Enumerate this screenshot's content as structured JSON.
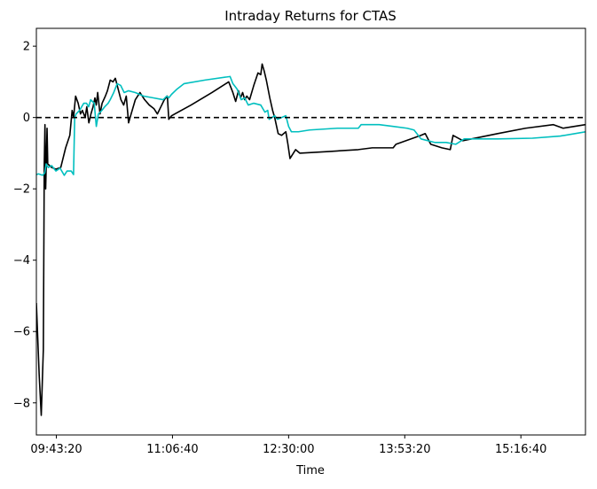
{
  "chart_data": {
    "type": "line",
    "title": "Intraday Returns for CTAS",
    "xlabel": "Time",
    "ylabel": "",
    "xlim": [
      "09:29:00",
      "16:03:00"
    ],
    "ylim": [
      -8.9,
      2.5
    ],
    "x_ticks": [
      "09:43:20",
      "11:06:40",
      "12:30:00",
      "13:53:20",
      "15:16:40"
    ],
    "y_ticks": [
      2,
      0,
      -2,
      -4,
      -6,
      -8
    ],
    "y_tick_labels": [
      "2",
      "0",
      "−2",
      "−4",
      "−6",
      "−8"
    ],
    "grid": false,
    "legend": "none",
    "reference_line": {
      "y": 0,
      "style": "dashed",
      "color": "#000000"
    },
    "series": [
      {
        "color": "#000000",
        "points": [
          [
            "09:29:00",
            -5.2
          ],
          [
            "09:31:00",
            -7.2
          ],
          [
            "09:32:30",
            -8.35
          ],
          [
            "09:34:00",
            -6.5
          ],
          [
            "09:34:40",
            -1.3
          ],
          [
            "09:35:10",
            -0.2
          ],
          [
            "09:35:40",
            -2.0
          ],
          [
            "09:36:10",
            -1.2
          ],
          [
            "09:36:40",
            -0.3
          ],
          [
            "09:37:10",
            -1.3
          ],
          [
            "09:38:30",
            -1.35
          ],
          [
            "09:40:00",
            -1.4
          ],
          [
            "09:43:00",
            -1.45
          ],
          [
            "09:46:30",
            -1.4
          ],
          [
            "09:50:00",
            -0.85
          ],
          [
            "09:53:00",
            -0.5
          ],
          [
            "09:54:40",
            0.2
          ],
          [
            "09:55:40",
            0.0
          ],
          [
            "09:57:10",
            0.6
          ],
          [
            "09:59:00",
            0.4
          ],
          [
            "10:00:40",
            0.1
          ],
          [
            "10:02:00",
            0.2
          ],
          [
            "10:04:00",
            0.0
          ],
          [
            "10:05:10",
            0.3
          ],
          [
            "10:06:40",
            -0.15
          ],
          [
            "10:08:10",
            0.1
          ],
          [
            "10:09:40",
            0.3
          ],
          [
            "10:11:00",
            0.55
          ],
          [
            "10:12:00",
            0.35
          ],
          [
            "10:13:00",
            0.7
          ],
          [
            "10:14:40",
            0.1
          ],
          [
            "10:16:10",
            0.4
          ],
          [
            "10:18:30",
            0.6
          ],
          [
            "10:20:00",
            0.75
          ],
          [
            "10:22:00",
            1.05
          ],
          [
            "10:24:00",
            1.0
          ],
          [
            "10:25:40",
            1.1
          ],
          [
            "10:27:40",
            0.8
          ],
          [
            "10:29:40",
            0.5
          ],
          [
            "10:31:40",
            0.35
          ],
          [
            "10:33:30",
            0.6
          ],
          [
            "10:35:10",
            -0.15
          ],
          [
            "10:37:00",
            0.1
          ],
          [
            "10:40:00",
            0.5
          ],
          [
            "10:43:20",
            0.7
          ],
          [
            "10:46:40",
            0.5
          ],
          [
            "10:50:00",
            0.35
          ],
          [
            "10:53:20",
            0.25
          ],
          [
            "10:55:50",
            0.1
          ],
          [
            "10:58:20",
            0.3
          ],
          [
            "11:00:50",
            0.5
          ],
          [
            "11:03:00",
            0.6
          ],
          [
            "11:04:00",
            -0.05
          ],
          [
            "11:06:00",
            0.05
          ],
          [
            "11:20:00",
            0.35
          ],
          [
            "11:35:00",
            0.7
          ],
          [
            "11:47:00",
            1.0
          ],
          [
            "11:50:00",
            0.7
          ],
          [
            "11:52:00",
            0.45
          ],
          [
            "11:54:00",
            0.75
          ],
          [
            "11:55:30",
            0.55
          ],
          [
            "11:57:00",
            0.7
          ],
          [
            "11:58:30",
            0.5
          ],
          [
            "12:00:00",
            0.6
          ],
          [
            "12:02:00",
            0.5
          ],
          [
            "12:05:00",
            0.9
          ],
          [
            "12:08:00",
            1.25
          ],
          [
            "12:10:00",
            1.2
          ],
          [
            "12:11:00",
            1.5
          ],
          [
            "12:12:30",
            1.3
          ],
          [
            "12:14:00",
            1.05
          ],
          [
            "12:16:30",
            0.55
          ],
          [
            "12:18:30",
            0.2
          ],
          [
            "12:20:00",
            0.0
          ],
          [
            "12:22:30",
            -0.45
          ],
          [
            "12:25:00",
            -0.5
          ],
          [
            "12:28:00",
            -0.4
          ],
          [
            "12:29:30",
            -0.75
          ],
          [
            "12:31:00",
            -1.15
          ],
          [
            "12:35:00",
            -0.9
          ],
          [
            "12:38:00",
            -1.0
          ],
          [
            "13:00:00",
            -0.95
          ],
          [
            "13:20:00",
            -0.9
          ],
          [
            "13:30:00",
            -0.85
          ],
          [
            "13:45:00",
            -0.85
          ],
          [
            "13:47:00",
            -0.75
          ],
          [
            "14:05:00",
            -0.5
          ],
          [
            "14:08:00",
            -0.45
          ],
          [
            "14:12:00",
            -0.75
          ],
          [
            "14:20:00",
            -0.85
          ],
          [
            "14:26:00",
            -0.9
          ],
          [
            "14:28:00",
            -0.5
          ],
          [
            "14:35:00",
            -0.65
          ],
          [
            "15:00:00",
            -0.45
          ],
          [
            "15:20:00",
            -0.3
          ],
          [
            "15:40:00",
            -0.2
          ],
          [
            "15:47:00",
            -0.3
          ],
          [
            "15:55:00",
            -0.25
          ],
          [
            "16:03:00",
            -0.2
          ]
        ]
      },
      {
        "color": "#00bfbf",
        "points": [
          [
            "09:29:00",
            -1.6
          ],
          [
            "09:30:30",
            -1.58
          ],
          [
            "09:33:30",
            -1.62
          ],
          [
            "09:35:00",
            -1.55
          ],
          [
            "09:36:00",
            -1.3
          ],
          [
            "09:37:30",
            -1.4
          ],
          [
            "09:40:00",
            -1.35
          ],
          [
            "09:43:00",
            -1.5
          ],
          [
            "09:46:00",
            -1.42
          ],
          [
            "09:49:00",
            -1.62
          ],
          [
            "09:51:00",
            -1.5
          ],
          [
            "09:54:00",
            -1.5
          ],
          [
            "09:55:40",
            -1.6
          ],
          [
            "09:56:30",
            0.0
          ],
          [
            "09:57:30",
            0.1
          ],
          [
            "10:00:00",
            0.2
          ],
          [
            "10:03:00",
            0.4
          ],
          [
            "10:05:00",
            0.4
          ],
          [
            "10:06:30",
            0.3
          ],
          [
            "10:08:00",
            0.5
          ],
          [
            "10:10:30",
            0.4
          ],
          [
            "10:12:00",
            -0.25
          ],
          [
            "10:13:30",
            0.1
          ],
          [
            "10:16:00",
            0.2
          ],
          [
            "10:18:00",
            0.3
          ],
          [
            "10:20:30",
            0.4
          ],
          [
            "10:22:00",
            0.5
          ],
          [
            "10:24:30",
            0.7
          ],
          [
            "10:27:00",
            0.95
          ],
          [
            "10:29:30",
            0.9
          ],
          [
            "10:32:00",
            0.7
          ],
          [
            "10:35:00",
            0.75
          ],
          [
            "10:40:00",
            0.7
          ],
          [
            "10:46:00",
            0.6
          ],
          [
            "10:53:00",
            0.55
          ],
          [
            "11:00:00",
            0.5
          ],
          [
            "11:02:30",
            0.6
          ],
          [
            "11:04:00",
            0.55
          ],
          [
            "11:06:00",
            0.65
          ],
          [
            "11:10:00",
            0.8
          ],
          [
            "11:15:00",
            0.95
          ],
          [
            "11:30:00",
            1.05
          ],
          [
            "11:48:00",
            1.15
          ],
          [
            "11:50:00",
            0.95
          ],
          [
            "11:53:00",
            0.8
          ],
          [
            "11:56:00",
            0.5
          ],
          [
            "11:58:30",
            0.55
          ],
          [
            "12:01:00",
            0.35
          ],
          [
            "12:05:00",
            0.4
          ],
          [
            "12:10:00",
            0.35
          ],
          [
            "12:13:00",
            0.15
          ],
          [
            "12:15:00",
            0.2
          ],
          [
            "12:16:00",
            -0.05
          ],
          [
            "12:18:00",
            0.0
          ],
          [
            "12:20:00",
            0.05
          ],
          [
            "12:22:00",
            -0.05
          ],
          [
            "12:25:00",
            0.0
          ],
          [
            "12:28:00",
            0.05
          ],
          [
            "12:30:00",
            -0.25
          ],
          [
            "12:32:00",
            -0.4
          ],
          [
            "12:37:00",
            -0.4
          ],
          [
            "12:45:00",
            -0.35
          ],
          [
            "13:05:00",
            -0.3
          ],
          [
            "13:20:00",
            -0.3
          ],
          [
            "13:22:00",
            -0.2
          ],
          [
            "13:35:00",
            -0.2
          ],
          [
            "13:45:00",
            -0.25
          ],
          [
            "13:55:00",
            -0.3
          ],
          [
            "14:00:00",
            -0.35
          ],
          [
            "14:05:00",
            -0.6
          ],
          [
            "14:15:00",
            -0.7
          ],
          [
            "14:23:00",
            -0.7
          ],
          [
            "14:30:00",
            -0.75
          ],
          [
            "14:36:00",
            -0.6
          ],
          [
            "14:45:00",
            -0.6
          ],
          [
            "15:00:00",
            -0.6
          ],
          [
            "15:25:00",
            -0.58
          ],
          [
            "15:45:00",
            -0.52
          ],
          [
            "16:03:00",
            -0.4
          ]
        ]
      }
    ]
  }
}
